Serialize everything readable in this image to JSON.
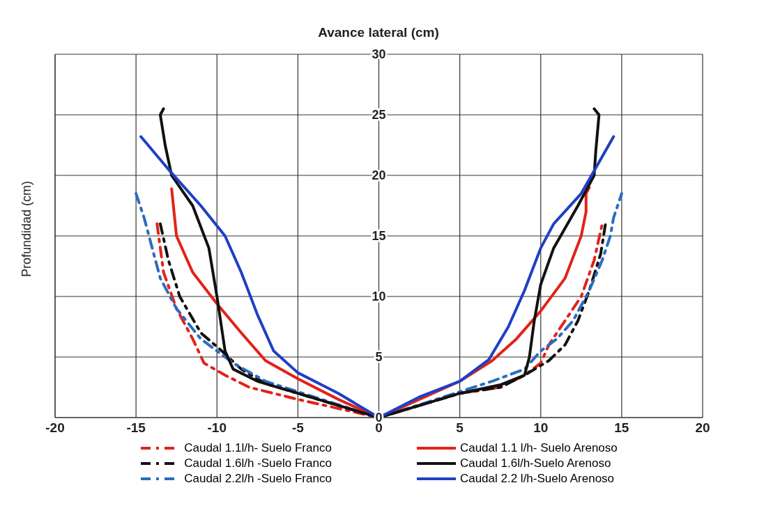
{
  "chart_data": {
    "type": "line",
    "xlabel": "Avance lateral (cm)",
    "ylabel": "Profundidad (cm)",
    "xlim": [
      -20,
      20
    ],
    "xticks": [
      -20,
      -15,
      -10,
      -5,
      0,
      5,
      10,
      15,
      20
    ],
    "ylim": [
      0,
      30
    ],
    "yticks": [
      0,
      5,
      10,
      15,
      20,
      25,
      30
    ],
    "grid": true,
    "legend": "bottom",
    "marker": "none",
    "series": [
      {
        "name": "Caudal 1.1l/h- Suelo Franco",
        "color": "#e32219",
        "line_style": "dashed",
        "x": [
          -13.7,
          -13.3,
          -12.5,
          -11.5,
          -10.8,
          -9.5,
          -8,
          -5,
          0,
          2.5,
          5,
          7.5,
          9,
          10,
          10.5,
          11.5,
          12.5,
          13.3,
          13.8
        ],
        "values": [
          16,
          12,
          9,
          6.5,
          4.5,
          3.5,
          2.5,
          1.5,
          0,
          1,
          2,
          2.5,
          3.5,
          4.5,
          6,
          8,
          10,
          13,
          16
        ]
      },
      {
        "name": "Caudal 1.6l/h -Suelo Franco",
        "color": "#111111",
        "line_style": "dashed",
        "x": [
          -13.5,
          -13,
          -12.3,
          -11,
          -9.7,
          -8.5,
          -7,
          -5,
          -2.5,
          0,
          2.5,
          5,
          7.5,
          9,
          10.5,
          11.5,
          12.3,
          13,
          13.7,
          14
        ],
        "values": [
          16,
          13,
          10,
          7,
          5.5,
          4,
          2.8,
          2,
          1,
          0,
          1,
          2,
          2.5,
          3.5,
          4.7,
          6,
          8,
          10.5,
          13.5,
          16
        ]
      },
      {
        "name": "Caudal 2.2l/h -Suelo Franco",
        "color": "#2a6cc0",
        "line_style": "dashed",
        "x": [
          -15,
          -14.5,
          -14,
          -13.5,
          -12.5,
          -11,
          -9,
          -7,
          -4,
          0,
          4,
          7,
          9,
          10,
          11,
          12,
          13,
          13.8,
          14.3,
          14.5,
          15
        ],
        "values": [
          18.5,
          16.5,
          14,
          11.5,
          9,
          6.5,
          4.5,
          3,
          1.7,
          0,
          1.7,
          3,
          4,
          5.5,
          6.5,
          8,
          10.5,
          13,
          15,
          16.5,
          18.5
        ]
      },
      {
        "name": "Caudal 1.1 l/h- Suelo Arenoso",
        "color": "#e32219",
        "line_style": "solid",
        "x": [
          -12.8,
          -12.5,
          -11.5,
          -10,
          -8.5,
          -7,
          -5,
          -2.5,
          0,
          2.5,
          5,
          7,
          8.5,
          10,
          11.5,
          12.5,
          12.8,
          12.8,
          13
        ],
        "values": [
          18.9,
          15,
          12,
          9.4,
          7,
          4.7,
          3.2,
          1.5,
          0,
          1.5,
          3,
          4.7,
          6.5,
          8.8,
          11.5,
          15,
          17,
          18.5,
          19
        ]
      },
      {
        "name": "Caudal 1.6l/h-Suelo Arenoso",
        "color": "#111111",
        "line_style": "solid",
        "x": [
          -13.3,
          -13.5,
          -13.2,
          -12.8,
          -11.5,
          -10.5,
          -10,
          -9.5,
          -9,
          -7.5,
          -5,
          -2.5,
          0,
          2.5,
          5,
          7.5,
          9,
          9.3,
          9.6,
          10,
          10.8,
          12.3,
          13.3,
          13.4,
          13.6,
          13.3
        ],
        "values": [
          25.5,
          25,
          22.5,
          20,
          17.5,
          14,
          10,
          5.5,
          4,
          3,
          2,
          1,
          0,
          1,
          2,
          2.7,
          3.5,
          5,
          8,
          11,
          14,
          17.5,
          20,
          22,
          25,
          25.5
        ]
      },
      {
        "name": "Caudal 2.2 l/h-Suelo Arenoso",
        "color": "#1f3fc4",
        "line_style": "solid",
        "x": [
          -14.7,
          -13,
          -11,
          -9.5,
          -8.5,
          -7.5,
          -6.5,
          -5,
          -2.5,
          0,
          2.5,
          5,
          6.8,
          8,
          9,
          10,
          10.8,
          12.5,
          14.5
        ],
        "values": [
          23.2,
          20.5,
          17.5,
          15,
          12,
          8.5,
          5.5,
          3.7,
          2,
          0,
          1.7,
          3,
          4.8,
          7.5,
          10.5,
          14,
          16,
          18.5,
          23.2
        ]
      }
    ]
  }
}
